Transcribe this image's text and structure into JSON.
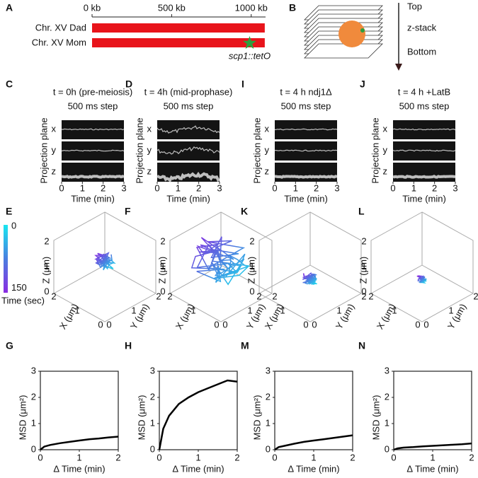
{
  "genome": {
    "label": "A",
    "xlim": [
      0,
      1090
    ],
    "xticks": [
      {
        "value": 0,
        "label": "0 kb"
      },
      {
        "value": 500,
        "label": "500 kb"
      },
      {
        "value": 1000,
        "label": "1000 kb"
      }
    ],
    "rows": [
      "Chr. XV Dad",
      "Chr. XV Mom"
    ],
    "chromosome_length_kb": 1085,
    "locus": "scp1::tetO",
    "locus_kb": 990,
    "bar_color": "#e8141b",
    "star_color": "#2e9e3e"
  },
  "zstack": {
    "label": "B",
    "top": "Top",
    "middle": "z-stack",
    "bottom": "Bottom"
  },
  "kymographs": {
    "ylabel": "Projection plane",
    "xlabel": "Time (min)",
    "xlim": [
      0,
      3
    ],
    "xticks": [
      0,
      1,
      2,
      3
    ],
    "rows": [
      "x",
      "y",
      "z"
    ],
    "panels": [
      {
        "label": "C",
        "title": "t = 0h (pre-meiosis)",
        "subtitle": "500 ms step"
      },
      {
        "label": "D",
        "title": "t = 4h (mid-prophase)",
        "subtitle": "500 ms step"
      },
      {
        "label": "I",
        "title": "t = 4 h ndj1Δ",
        "subtitle": "500 ms step"
      },
      {
        "label": "J",
        "title": "t = 4 h +LatB",
        "subtitle": "500 ms step"
      }
    ]
  },
  "trajectories": {
    "panels": [
      "E",
      "F",
      "K",
      "L"
    ],
    "axes": {
      "z": "Z (μm)",
      "x": "X (μm)",
      "y": "Y (μm)",
      "ticks": [
        0,
        1,
        2
      ],
      "lim": [
        0,
        2
      ]
    },
    "colorbar": {
      "lim": [
        0,
        158
      ],
      "ticks": [
        0,
        150
      ],
      "label": "Time (sec)"
    }
  },
  "chart_data": [
    {
      "type": "line",
      "label": "G",
      "xlabel": "Δ Time (min)",
      "ylabel": "MSD (μm²)",
      "color": "#000000",
      "xlim": [
        0,
        2
      ],
      "ylim": [
        0,
        3
      ],
      "xticks": [
        0,
        1,
        2
      ],
      "yticks": [
        0,
        1,
        2,
        3
      ],
      "x": [
        0,
        0.1,
        0.25,
        0.5,
        0.75,
        1,
        1.25,
        1.5,
        1.75,
        2
      ],
      "values": [
        0,
        0.12,
        0.18,
        0.25,
        0.3,
        0.35,
        0.4,
        0.43,
        0.47,
        0.5
      ]
    },
    {
      "type": "line",
      "label": "H",
      "xlabel": "Δ Time (min)",
      "ylabel": "MSD (μm²)",
      "color": "#000000",
      "xlim": [
        0,
        2
      ],
      "ylim": [
        0,
        3
      ],
      "xticks": [
        0,
        1,
        2
      ],
      "yticks": [
        0,
        1,
        2,
        3
      ],
      "x": [
        0,
        0.1,
        0.25,
        0.5,
        0.75,
        1,
        1.25,
        1.5,
        1.75,
        2
      ],
      "values": [
        0,
        0.8,
        1.3,
        1.75,
        2.0,
        2.2,
        2.35,
        2.5,
        2.65,
        2.6
      ]
    },
    {
      "type": "line",
      "label": "M",
      "xlabel": "Δ Time (min)",
      "ylabel": "MSD (μm²)",
      "color": "#000000",
      "xlim": [
        0,
        2
      ],
      "ylim": [
        0,
        3
      ],
      "xticks": [
        0,
        1,
        2
      ],
      "yticks": [
        0,
        1,
        2,
        3
      ],
      "x": [
        0,
        0.1,
        0.25,
        0.5,
        0.75,
        1,
        1.25,
        1.5,
        1.75,
        2
      ],
      "values": [
        0,
        0.1,
        0.15,
        0.23,
        0.3,
        0.35,
        0.4,
        0.45,
        0.5,
        0.55
      ]
    },
    {
      "type": "line",
      "label": "N",
      "xlabel": "Δ Time (min)",
      "ylabel": "MSD (μm²)",
      "color": "#000000",
      "xlim": [
        0,
        2
      ],
      "ylim": [
        0,
        3
      ],
      "xticks": [
        0,
        1,
        2
      ],
      "yticks": [
        0,
        1,
        2,
        3
      ],
      "x": [
        0,
        0.1,
        0.25,
        0.5,
        0.75,
        1,
        1.25,
        1.5,
        1.75,
        2
      ],
      "values": [
        0,
        0.05,
        0.08,
        0.1,
        0.13,
        0.15,
        0.17,
        0.19,
        0.21,
        0.24
      ]
    }
  ]
}
